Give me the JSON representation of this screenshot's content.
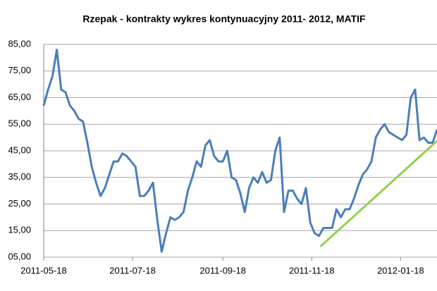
{
  "chart_data": {
    "type": "line",
    "title": "Rzepak - kontrakty wykres kontynuacyjny 2011- 2012,  MATIF",
    "x": [
      "2011-05-18",
      "2011-05-21",
      "2011-05-24",
      "2011-05-27",
      "2011-05-30",
      "2011-06-02",
      "2011-06-05",
      "2011-06-08",
      "2011-06-11",
      "2011-06-14",
      "2011-06-17",
      "2011-06-20",
      "2011-06-23",
      "2011-06-26",
      "2011-06-29",
      "2011-07-02",
      "2011-07-05",
      "2011-07-08",
      "2011-07-11",
      "2011-07-14",
      "2011-07-17",
      "2011-07-20",
      "2011-07-23",
      "2011-07-26",
      "2011-07-29",
      "2011-08-01",
      "2011-08-04",
      "2011-08-07",
      "2011-08-10",
      "2011-08-13",
      "2011-08-16",
      "2011-08-19",
      "2011-08-22",
      "2011-08-25",
      "2011-08-28",
      "2011-08-31",
      "2011-09-03",
      "2011-09-06",
      "2011-09-09",
      "2011-09-12",
      "2011-09-15",
      "2011-09-18",
      "2011-09-21",
      "2011-09-24",
      "2011-09-27",
      "2011-09-30",
      "2011-10-03",
      "2011-10-06",
      "2011-10-09",
      "2011-10-12",
      "2011-10-15",
      "2011-10-18",
      "2011-10-21",
      "2011-10-24",
      "2011-10-27",
      "2011-10-30",
      "2011-11-02",
      "2011-11-05",
      "2011-11-08",
      "2011-11-11",
      "2011-11-14",
      "2011-11-17",
      "2011-11-20",
      "2011-11-23",
      "2011-11-26",
      "2011-11-29",
      "2011-12-02",
      "2011-12-05",
      "2011-12-08",
      "2011-12-11",
      "2011-12-14",
      "2011-12-17",
      "2011-12-20",
      "2011-12-23",
      "2011-12-26",
      "2011-12-29",
      "2012-01-01",
      "2012-01-04",
      "2012-01-07",
      "2012-01-10",
      "2012-01-13",
      "2012-01-16",
      "2012-01-19",
      "2012-01-22",
      "2012-01-25",
      "2012-01-28",
      "2012-01-31",
      "2012-02-03",
      "2012-02-06",
      "2012-02-09",
      "2012-02-12"
    ],
    "series": [
      {
        "color": "#4a7ebb",
        "values": [
          62,
          68,
          73,
          83,
          68,
          67,
          62,
          60,
          57,
          56,
          48,
          39,
          33,
          28,
          31,
          36,
          41,
          41,
          44,
          43,
          41,
          39,
          28,
          28,
          30,
          33,
          19,
          7,
          14,
          20,
          19,
          20,
          22,
          30,
          35,
          41,
          39,
          47,
          49,
          43,
          41,
          41,
          45,
          35,
          34,
          29,
          22,
          31,
          35,
          33,
          37,
          33,
          34,
          45,
          50,
          22,
          30,
          30,
          27,
          25,
          31,
          18,
          14,
          13,
          16,
          16,
          16,
          23,
          20,
          23,
          23,
          27,
          32,
          36,
          38,
          41,
          50,
          53,
          55,
          52,
          51,
          50,
          49,
          51,
          65,
          68,
          49,
          50,
          48,
          48,
          53
        ]
      }
    ],
    "trendline": {
      "color": "#92d050",
      "x": [
        "2011-11-24",
        "2012-02-12"
      ],
      "values": [
        9,
        48.7
      ]
    },
    "xlim": [
      "2011-05-18",
      "2012-02-12"
    ],
    "xticks": [
      "2011-05-18",
      "2011-07-18",
      "2011-09-18",
      "2011-11-18",
      "2012-01-18"
    ],
    "ylim": [
      5,
      85
    ],
    "yticks": [
      {
        "value": 5,
        "label": "05,00"
      },
      {
        "value": 15,
        "label": "15,00"
      },
      {
        "value": 25,
        "label": "25,00"
      },
      {
        "value": 35,
        "label": "35,00"
      },
      {
        "value": 45,
        "label": "45,00"
      },
      {
        "value": 55,
        "label": "55,00"
      },
      {
        "value": 65,
        "label": "65,00"
      },
      {
        "value": 75,
        "label": "75,00"
      },
      {
        "value": 85,
        "label": "85,00"
      }
    ],
    "grid": true
  }
}
